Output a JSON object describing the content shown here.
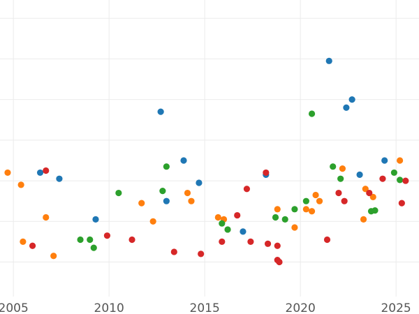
{
  "chart_data": {
    "type": "scatter",
    "title": "",
    "xlabel": "",
    "ylabel": "",
    "xlim": [
      2004.3,
      2026.2
    ],
    "ylim": [
      -2.85,
      4.45
    ],
    "x_ticks": [
      2005,
      2010,
      2015,
      2020,
      2025
    ],
    "x_tick_labels": [
      "2005",
      "2010",
      "2015",
      "2020",
      "2025"
    ],
    "y_gridlines": [
      -2.0,
      -1.0,
      0.0,
      1.0,
      2.0,
      3.0,
      4.0
    ],
    "y_tick_labels_visible": false,
    "grid": true,
    "legend": "none",
    "series": [
      {
        "color": "#1f77b4",
        "points": [
          [
            2006.4,
            0.2
          ],
          [
            2007.4,
            0.05
          ],
          [
            2009.3,
            -0.95
          ],
          [
            2012.7,
            1.7
          ],
          [
            2013.0,
            -0.5
          ],
          [
            2013.9,
            0.5
          ],
          [
            2014.7,
            -0.05
          ],
          [
            2017.0,
            -1.25
          ],
          [
            2018.2,
            0.15
          ],
          [
            2021.5,
            2.95
          ],
          [
            2022.4,
            1.8
          ],
          [
            2022.7,
            2.0
          ],
          [
            2023.1,
            0.15
          ],
          [
            2024.4,
            0.5
          ]
        ]
      },
      {
        "color": "#ff7f0e",
        "points": [
          [
            2004.7,
            0.2
          ],
          [
            2005.4,
            -0.1
          ],
          [
            2005.5,
            -1.5
          ],
          [
            2006.7,
            -0.9
          ],
          [
            2007.1,
            -1.85
          ],
          [
            2011.7,
            -0.55
          ],
          [
            2012.3,
            -1.0
          ],
          [
            2014.1,
            -0.3
          ],
          [
            2014.3,
            -0.5
          ],
          [
            2015.7,
            -0.9
          ],
          [
            2016.0,
            -0.95
          ],
          [
            2018.8,
            -0.7
          ],
          [
            2019.7,
            -1.15
          ],
          [
            2020.3,
            -0.7
          ],
          [
            2020.6,
            -0.75
          ],
          [
            2020.8,
            -0.35
          ],
          [
            2021.0,
            -0.5
          ],
          [
            2022.2,
            0.3
          ],
          [
            2023.3,
            -0.95
          ],
          [
            2023.4,
            -0.2
          ],
          [
            2023.8,
            -0.4
          ],
          [
            2025.2,
            0.5
          ]
        ]
      },
      {
        "color": "#2ca02c",
        "points": [
          [
            2008.5,
            -1.45
          ],
          [
            2009.0,
            -1.45
          ],
          [
            2009.2,
            -1.65
          ],
          [
            2010.5,
            -0.3
          ],
          [
            2012.8,
            -0.25
          ],
          [
            2013.0,
            0.35
          ],
          [
            2015.9,
            -1.05
          ],
          [
            2016.2,
            -1.2
          ],
          [
            2018.7,
            -0.9
          ],
          [
            2019.2,
            -0.95
          ],
          [
            2019.7,
            -0.7
          ],
          [
            2020.3,
            -0.5
          ],
          [
            2020.6,
            1.65
          ],
          [
            2021.7,
            0.35
          ],
          [
            2022.1,
            0.05
          ],
          [
            2023.7,
            -0.75
          ],
          [
            2023.9,
            -0.73
          ],
          [
            2024.9,
            0.2
          ],
          [
            2025.2,
            0.02
          ]
        ]
      },
      {
        "color": "#d62728",
        "points": [
          [
            2006.0,
            -1.6
          ],
          [
            2006.7,
            0.25
          ],
          [
            2009.9,
            -1.35
          ],
          [
            2011.2,
            -1.45
          ],
          [
            2013.4,
            -1.75
          ],
          [
            2014.8,
            -1.8
          ],
          [
            2015.9,
            -1.5
          ],
          [
            2016.7,
            -0.85
          ],
          [
            2017.2,
            -0.2
          ],
          [
            2017.4,
            -1.5
          ],
          [
            2018.2,
            0.2
          ],
          [
            2018.3,
            -1.55
          ],
          [
            2018.8,
            -1.6
          ],
          [
            2018.8,
            -1.95
          ],
          [
            2018.9,
            -2.0
          ],
          [
            2021.4,
            -1.45
          ],
          [
            2022.0,
            -0.3
          ],
          [
            2022.3,
            -0.5
          ],
          [
            2023.6,
            -0.3
          ],
          [
            2024.3,
            0.05
          ],
          [
            2025.3,
            -0.55
          ],
          [
            2025.5,
            0.0
          ]
        ]
      }
    ]
  }
}
